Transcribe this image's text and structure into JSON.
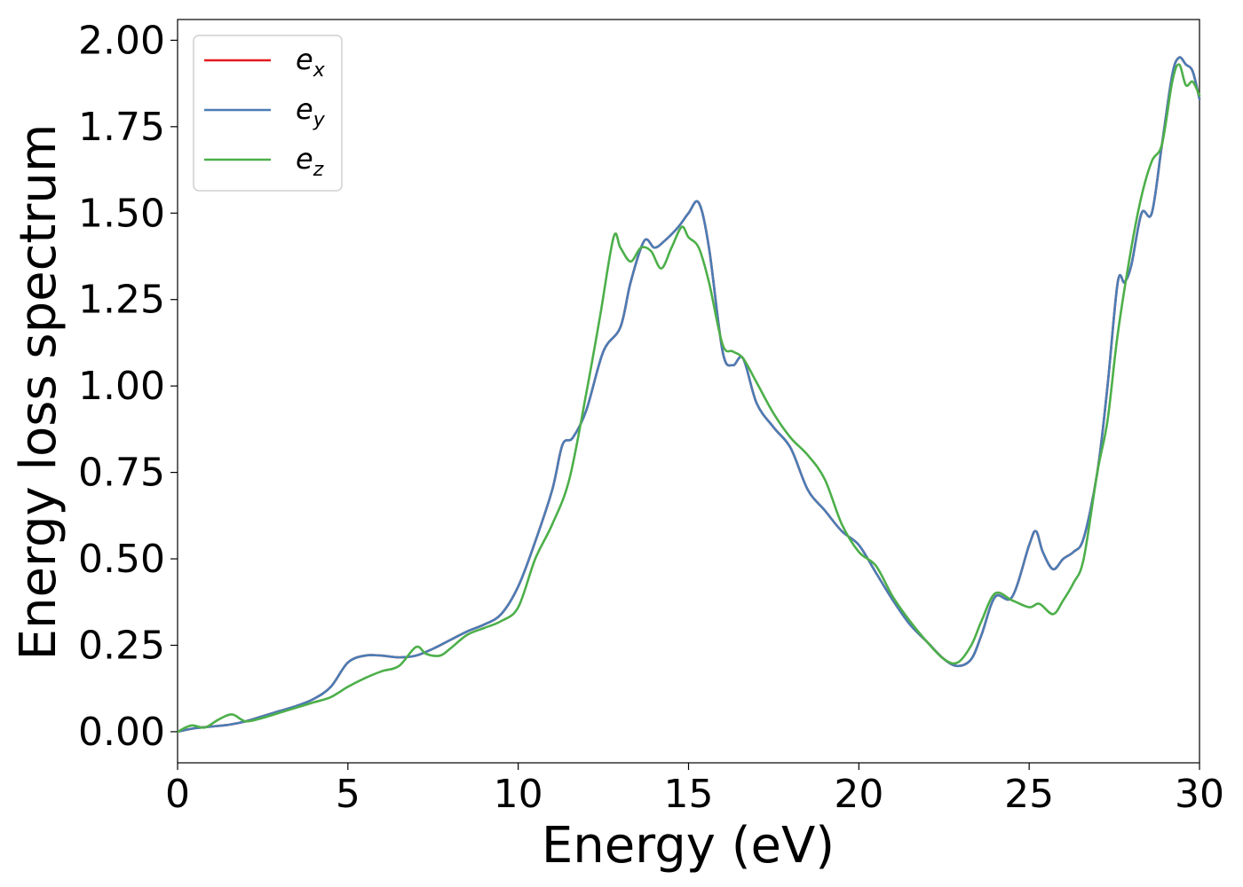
{
  "chart_data": {
    "type": "line",
    "title": "",
    "xlabel": "Energy (eV)",
    "ylabel": "Energy loss spectrum",
    "xlim": [
      0,
      30
    ],
    "ylim": [
      -0.09,
      2.06
    ],
    "xticks": [
      "0",
      "5",
      "10",
      "15",
      "20",
      "25",
      "30"
    ],
    "yticks": [
      "0.00",
      "0.25",
      "0.50",
      "0.75",
      "1.00",
      "1.25",
      "1.50",
      "1.75",
      "2.00"
    ],
    "xtick_values": [
      0,
      5,
      10,
      15,
      20,
      25,
      30
    ],
    "ytick_values": [
      0,
      0.25,
      0.5,
      0.75,
      1.0,
      1.25,
      1.5,
      1.75,
      2.0
    ],
    "grid": false,
    "legend_position": "top-left",
    "series": [
      {
        "name": "e_x",
        "legend_base": "e",
        "legend_sub": "x",
        "color": "#e41a1c",
        "x": [
          0,
          0.5,
          1,
          1.5,
          2,
          2.5,
          3,
          3.5,
          4,
          4.5,
          5,
          5.5,
          6,
          6.5,
          7,
          7.5,
          8,
          8.5,
          9,
          9.5,
          10,
          10.5,
          11,
          11.3,
          11.6,
          12,
          12.5,
          13,
          13.3,
          13.7,
          14,
          14.3,
          14.7,
          15,
          15.3,
          15.6,
          16,
          16.3,
          16.6,
          17,
          17.5,
          18,
          18.5,
          19,
          19.5,
          20,
          20.5,
          21,
          21.5,
          22,
          22.5,
          22.9,
          23.3,
          23.6,
          24,
          24.5,
          25,
          25.2,
          25.4,
          25.7,
          26,
          26.3,
          26.6,
          27,
          27.3,
          27.6,
          27.8,
          28,
          28.3,
          28.6,
          28.9,
          29.2,
          29.4,
          29.6,
          29.8,
          30
        ],
        "y": [
          0,
          0.01,
          0.015,
          0.02,
          0.03,
          0.045,
          0.06,
          0.075,
          0.095,
          0.13,
          0.2,
          0.22,
          0.22,
          0.215,
          0.22,
          0.24,
          0.265,
          0.29,
          0.31,
          0.34,
          0.42,
          0.55,
          0.7,
          0.83,
          0.85,
          0.93,
          1.1,
          1.17,
          1.3,
          1.42,
          1.4,
          1.42,
          1.46,
          1.5,
          1.53,
          1.4,
          1.1,
          1.06,
          1.08,
          0.95,
          0.88,
          0.82,
          0.7,
          0.64,
          0.58,
          0.54,
          0.46,
          0.38,
          0.31,
          0.26,
          0.21,
          0.19,
          0.21,
          0.28,
          0.39,
          0.39,
          0.54,
          0.58,
          0.52,
          0.47,
          0.5,
          0.52,
          0.56,
          0.75,
          1.0,
          1.3,
          1.3,
          1.35,
          1.5,
          1.5,
          1.7,
          1.9,
          1.95,
          1.93,
          1.91,
          1.83
        ]
      },
      {
        "name": "e_y",
        "legend_base": "e",
        "legend_sub": "y",
        "color": "#4a7db5",
        "x": [
          0,
          0.5,
          1,
          1.5,
          2,
          2.5,
          3,
          3.5,
          4,
          4.5,
          5,
          5.5,
          6,
          6.5,
          7,
          7.5,
          8,
          8.5,
          9,
          9.5,
          10,
          10.5,
          11,
          11.3,
          11.6,
          12,
          12.5,
          13,
          13.3,
          13.7,
          14,
          14.3,
          14.7,
          15,
          15.3,
          15.6,
          16,
          16.3,
          16.6,
          17,
          17.5,
          18,
          18.5,
          19,
          19.5,
          20,
          20.5,
          21,
          21.5,
          22,
          22.5,
          22.9,
          23.3,
          23.6,
          24,
          24.5,
          25,
          25.2,
          25.4,
          25.7,
          26,
          26.3,
          26.6,
          27,
          27.3,
          27.6,
          27.8,
          28,
          28.3,
          28.6,
          28.9,
          29.2,
          29.4,
          29.6,
          29.8,
          30
        ],
        "y": [
          0,
          0.01,
          0.015,
          0.02,
          0.03,
          0.045,
          0.06,
          0.075,
          0.095,
          0.13,
          0.2,
          0.22,
          0.22,
          0.215,
          0.22,
          0.24,
          0.265,
          0.29,
          0.31,
          0.34,
          0.42,
          0.55,
          0.7,
          0.83,
          0.85,
          0.93,
          1.1,
          1.17,
          1.3,
          1.42,
          1.4,
          1.42,
          1.46,
          1.5,
          1.53,
          1.4,
          1.1,
          1.06,
          1.08,
          0.95,
          0.88,
          0.82,
          0.7,
          0.64,
          0.58,
          0.54,
          0.46,
          0.38,
          0.31,
          0.26,
          0.21,
          0.19,
          0.21,
          0.28,
          0.39,
          0.39,
          0.54,
          0.58,
          0.52,
          0.47,
          0.5,
          0.52,
          0.56,
          0.75,
          1.0,
          1.3,
          1.3,
          1.35,
          1.5,
          1.5,
          1.7,
          1.9,
          1.95,
          1.93,
          1.91,
          1.83
        ]
      },
      {
        "name": "e_z",
        "legend_base": "e",
        "legend_sub": "z",
        "color": "#4daf4a",
        "x": [
          0,
          0.4,
          0.8,
          1.2,
          1.6,
          2,
          2.5,
          3,
          3.5,
          4,
          4.5,
          5,
          5.5,
          6,
          6.5,
          7,
          7.3,
          7.7,
          8,
          8.5,
          9,
          9.5,
          10,
          10.5,
          11,
          11.5,
          12,
          12.4,
          12.8,
          13,
          13.3,
          13.6,
          13.9,
          14.2,
          14.5,
          14.8,
          15,
          15.3,
          15.6,
          16,
          16.3,
          16.6,
          17,
          17.5,
          18,
          18.5,
          19,
          19.5,
          20,
          20.5,
          21,
          21.5,
          22,
          22.5,
          22.9,
          23.3,
          23.6,
          24,
          24.5,
          25,
          25.3,
          25.7,
          26,
          26.3,
          26.6,
          27,
          27.3,
          27.6,
          28,
          28.3,
          28.6,
          28.9,
          29.2,
          29.4,
          29.6,
          29.8,
          30
        ],
        "y": [
          0,
          0.018,
          0.012,
          0.035,
          0.05,
          0.03,
          0.04,
          0.055,
          0.07,
          0.085,
          0.1,
          0.13,
          0.155,
          0.175,
          0.19,
          0.245,
          0.225,
          0.22,
          0.24,
          0.28,
          0.3,
          0.32,
          0.36,
          0.5,
          0.6,
          0.73,
          0.98,
          1.2,
          1.43,
          1.4,
          1.36,
          1.4,
          1.39,
          1.34,
          1.4,
          1.46,
          1.43,
          1.4,
          1.3,
          1.12,
          1.1,
          1.08,
          1.01,
          0.92,
          0.85,
          0.8,
          0.73,
          0.6,
          0.52,
          0.48,
          0.39,
          0.32,
          0.26,
          0.21,
          0.2,
          0.25,
          0.32,
          0.4,
          0.38,
          0.36,
          0.37,
          0.34,
          0.38,
          0.43,
          0.5,
          0.75,
          0.9,
          1.15,
          1.4,
          1.55,
          1.65,
          1.7,
          1.88,
          1.93,
          1.87,
          1.88,
          1.84
        ]
      }
    ]
  }
}
